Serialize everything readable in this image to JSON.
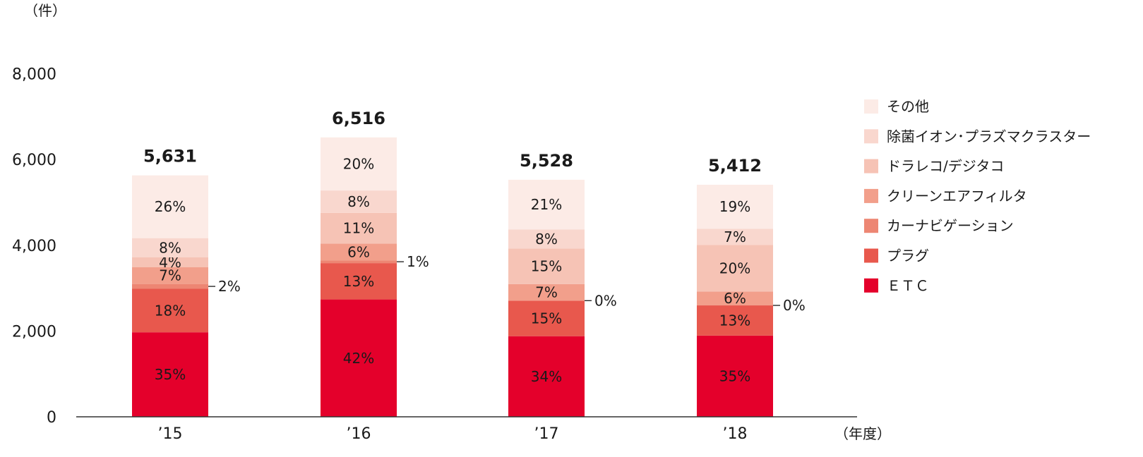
{
  "chart_data": {
    "type": "bar",
    "stacked": true,
    "y_unit_label": "（件）",
    "x_unit_label": "（年度）",
    "ylim": [
      0,
      8000
    ],
    "yticks": [
      "0",
      "2,000",
      "4,000",
      "6,000",
      "8,000"
    ],
    "ytick_values": [
      0,
      2000,
      4000,
      6000,
      8000
    ],
    "categories": [
      "’15",
      "’16",
      "’17",
      "’18"
    ],
    "totals": [
      5631,
      6516,
      5528,
      5412
    ],
    "total_labels": [
      "5,631",
      "6,516",
      "5,528",
      "5,412"
    ],
    "legend_position": "right",
    "series": [
      {
        "name": "ＥＴＣ",
        "color": "#e4002b",
        "percent_labels": [
          "35%",
          "42%",
          "34%",
          "35%"
        ],
        "values": [
          1971,
          2737,
          1880,
          1894
        ]
      },
      {
        "name": "プラグ",
        "color": "#e8584d",
        "percent_labels": [
          "18%",
          "13%",
          "15%",
          "13%"
        ],
        "values": [
          1014,
          847,
          829,
          704
        ]
      },
      {
        "name": "カーナビゲーション",
        "color": "#ed8673",
        "percent_labels": [
          "2%",
          "1%",
          "0%",
          "0%"
        ],
        "values": [
          113,
          65,
          0,
          0
        ]
      },
      {
        "name": "クリーンエアフィルタ",
        "color": "#f29f8b",
        "percent_labels": [
          "7%",
          "6%",
          "7%",
          "6%"
        ],
        "values": [
          394,
          391,
          387,
          325
        ]
      },
      {
        "name": "ドラレコ/デジタコ",
        "color": "#f6c3b5",
        "percent_labels": [
          "4%",
          "11%",
          "15%",
          "20%"
        ],
        "values": [
          225,
          717,
          829,
          1082
        ]
      },
      {
        "name": "除菌イオン･プラズマクラスター",
        "color": "#f9d7ce",
        "percent_labels": [
          "8%",
          "8%",
          "8%",
          "7%"
        ],
        "values": [
          450,
          521,
          442,
          379
        ]
      },
      {
        "name": "その他",
        "color": "#fcebe6",
        "percent_labels": [
          "26%",
          "20%",
          "21%",
          "19%"
        ],
        "values": [
          1464,
          1238,
          1161,
          1028
        ]
      }
    ]
  }
}
